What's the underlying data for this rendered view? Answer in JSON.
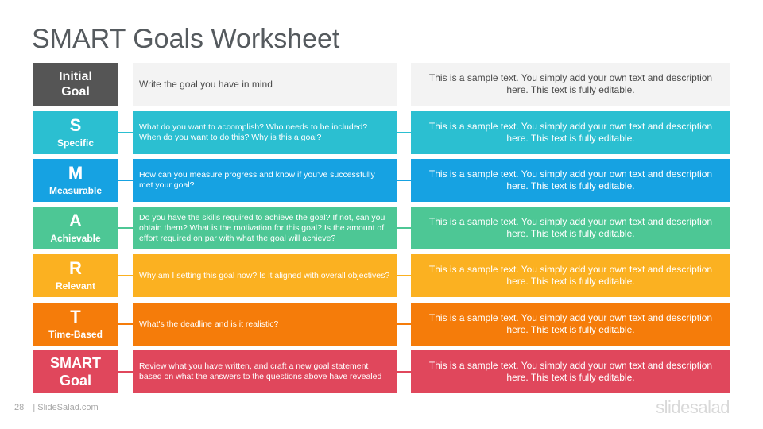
{
  "title": "SMART Goals Worksheet",
  "rows": [
    {
      "letter": "Initial\nGoal",
      "word": "",
      "question": "Write the goal you have in mind",
      "description": "This is a sample text. You simply add your own text and description here. This text is fully editable.",
      "color": "#555555"
    },
    {
      "letter": "S",
      "word": "Specific",
      "question": "What do you want to accomplish? Who needs to be included? When do you want to do this? Why is this a goal?",
      "description": "This is a sample text. You simply add your own text and description here. This text is fully editable.",
      "color": "#2bbfd1"
    },
    {
      "letter": "M",
      "word": "Measurable",
      "question": "How can you measure progress and know if you've successfully met your goal?",
      "description": "This is a sample text. You simply add your own text and description here. This text is fully editable.",
      "color": "#16a2e2"
    },
    {
      "letter": "A",
      "word": "Achievable",
      "question": "Do you have the skills required to achieve the goal? If not, can you obtain them? What is the motivation for this goal? Is the amount of effort required on par with what the goal will achieve?",
      "description": "This is a sample text. You simply add your own text and description here. This text is fully editable.",
      "color": "#4dc795"
    },
    {
      "letter": "R",
      "word": "Relevant",
      "question": "Why am I setting this goal now? Is it aligned with overall objectives?",
      "description": "This is a sample text. You simply add your own text and description here. This text is fully editable.",
      "color": "#fbb121"
    },
    {
      "letter": "T",
      "word": "Time-Based",
      "question": "What's the deadline and is it realistic?",
      "description": "This is a sample text. You simply add your own text and description here. This text is fully editable.",
      "color": "#f57c0a"
    },
    {
      "letter": "SMART\nGoal",
      "word": "",
      "question": "Review what you have written, and craft a new goal statement based on what the answers to the questions above have revealed",
      "description": "This is a sample text. You simply add your own text and description here. This text is fully editable.",
      "color": "#e0475c"
    }
  ],
  "footer": {
    "page": "28",
    "site": "| SlideSalad.com",
    "brand": "slidesalad"
  }
}
